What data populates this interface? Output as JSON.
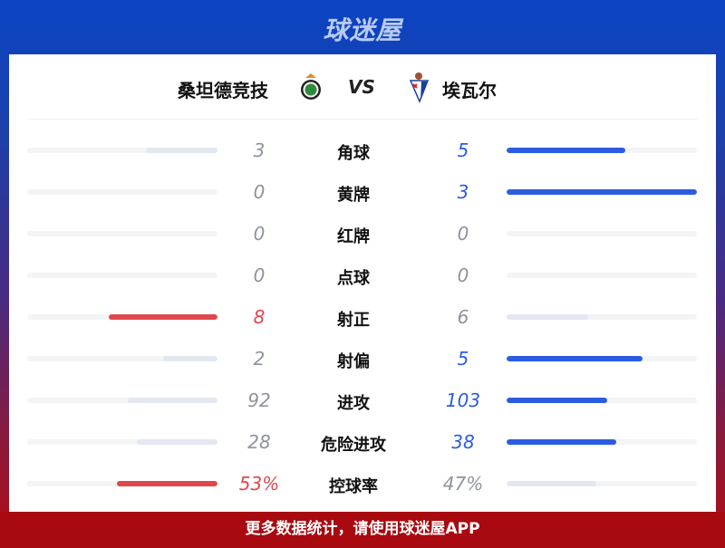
{
  "brand": "球迷屋",
  "match": {
    "home": "桑坦德竞技",
    "away": "埃瓦尔",
    "vs": "VS"
  },
  "colors": {
    "home_lead": "#e0474c",
    "away_lead": "#2b5ce0",
    "neutral_bar": "#e3e8f0",
    "neutral_text": "#8f939c",
    "track": "#f3f4f6"
  },
  "stats": [
    {
      "label": "角球",
      "home": "3",
      "away": "5",
      "hv": 3,
      "av": 5
    },
    {
      "label": "黄牌",
      "home": "0",
      "away": "3",
      "hv": 0,
      "av": 3
    },
    {
      "label": "红牌",
      "home": "0",
      "away": "0",
      "hv": 0,
      "av": 0
    },
    {
      "label": "点球",
      "home": "0",
      "away": "0",
      "hv": 0,
      "av": 0
    },
    {
      "label": "射正",
      "home": "8",
      "away": "6",
      "hv": 8,
      "av": 6
    },
    {
      "label": "射偏",
      "home": "2",
      "away": "5",
      "hv": 2,
      "av": 5
    },
    {
      "label": "进攻",
      "home": "92",
      "away": "103",
      "hv": 92,
      "av": 103
    },
    {
      "label": "危险进攻",
      "home": "28",
      "away": "38",
      "hv": 28,
      "av": 38
    },
    {
      "label": "控球率",
      "home": "53%",
      "away": "47%",
      "hv": 53,
      "av": 47
    }
  ],
  "footer": "更多数据统计，请使用球迷屋APP"
}
